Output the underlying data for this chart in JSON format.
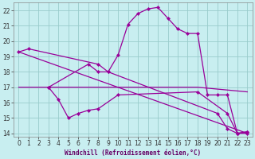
{
  "xlabel": "Windchill (Refroidissement éolien,°C)",
  "background_color": "#c8eef0",
  "grid_color": "#99cccc",
  "line_color": "#990099",
  "xlim": [
    -0.5,
    23.5
  ],
  "ylim": [
    13.8,
    22.5
  ],
  "yticks": [
    14,
    15,
    16,
    17,
    18,
    19,
    20,
    21,
    22
  ],
  "xticks": [
    0,
    1,
    2,
    3,
    4,
    5,
    6,
    7,
    8,
    9,
    10,
    11,
    12,
    13,
    14,
    15,
    16,
    17,
    18,
    19,
    20,
    21,
    22,
    23
  ],
  "series": [
    {
      "x": [
        0,
        1,
        8,
        9,
        20,
        21,
        22,
        23
      ],
      "y": [
        19.3,
        19.5,
        18.5,
        18.0,
        15.3,
        14.3,
        14.0,
        14.1
      ],
      "has_markers": true
    },
    {
      "x": [
        3,
        7,
        8,
        9,
        10,
        11,
        12,
        13,
        14,
        15,
        16,
        17,
        18,
        19,
        20,
        21,
        22,
        23
      ],
      "y": [
        17.0,
        18.5,
        18.0,
        18.0,
        19.1,
        21.1,
        21.8,
        22.1,
        22.2,
        21.5,
        20.8,
        20.5,
        20.5,
        16.5,
        16.5,
        16.5,
        14.0,
        14.0
      ],
      "has_markers": true
    },
    {
      "x": [
        3,
        4,
        5,
        6,
        7,
        8,
        10,
        18,
        21,
        22,
        23
      ],
      "y": [
        17.0,
        16.2,
        15.0,
        15.3,
        15.5,
        15.6,
        16.5,
        16.7,
        15.3,
        14.0,
        14.1
      ],
      "has_markers": true
    },
    {
      "x": [
        0,
        23
      ],
      "y": [
        19.3,
        14.0
      ],
      "has_markers": false
    },
    {
      "x": [
        0,
        18,
        23
      ],
      "y": [
        17.0,
        17.0,
        16.7
      ],
      "has_markers": false
    }
  ]
}
